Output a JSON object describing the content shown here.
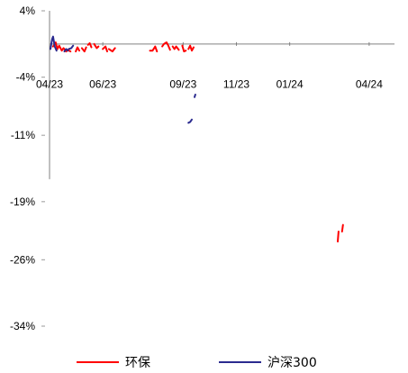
{
  "chart_data": {
    "type": "line",
    "y_axis": {
      "range": [
        -34,
        4
      ],
      "ticks": [
        4,
        -4,
        -11,
        -19,
        -26,
        -34
      ],
      "tick_labels": [
        "4%",
        "-4%",
        "-11%",
        "-19%",
        "-26%",
        "-34%"
      ]
    },
    "x_axis": {
      "crosses_y_at": 0,
      "range": [
        "2023-04-01",
        "2024-04-30"
      ],
      "ticks": [
        "2023-04-01",
        "2023-06-01",
        "2023-09-01",
        "2023-11-01",
        "2024-01-01",
        "2024-04-01"
      ],
      "tick_labels": [
        "04/23",
        "06/23",
        "09/23",
        "11/23",
        "01/24",
        "04/24"
      ]
    },
    "grid": false,
    "legend": {
      "placement": "bottom"
    },
    "series": [
      {
        "name": "环保",
        "color": "#ff0000",
        "segments": [
          [
            [
              "2023-04-05",
              -0.3
            ],
            [
              "2023-04-08",
              0.2
            ],
            [
              "2023-04-10",
              -0.6
            ],
            [
              "2023-04-12",
              -0.2
            ],
            [
              "2023-04-15",
              -0.8
            ],
            [
              "2023-04-17",
              -0.5
            ],
            [
              "2023-04-20",
              -0.9
            ],
            [
              "2023-04-22",
              -0.7
            ],
            [
              "2023-04-25",
              -0.9
            ]
          ],
          [
            [
              "2023-05-01",
              -0.9
            ],
            [
              "2023-05-03",
              -0.4
            ],
            [
              "2023-05-05",
              -0.8
            ]
          ],
          [
            [
              "2023-05-08",
              -0.5
            ],
            [
              "2023-05-11",
              -0.9
            ],
            [
              "2023-05-13",
              -0.4
            ]
          ],
          [
            [
              "2023-05-15",
              -0.1
            ],
            [
              "2023-05-17",
              0.1
            ],
            [
              "2023-05-19",
              -0.4
            ]
          ],
          [
            [
              "2023-05-22",
              0.0
            ],
            [
              "2023-05-25",
              -0.5
            ],
            [
              "2023-05-27",
              -0.3
            ]
          ],
          [
            [
              "2023-06-01",
              -0.6
            ],
            [
              "2023-06-04",
              -0.3
            ],
            [
              "2023-06-06",
              -0.9
            ]
          ],
          [
            [
              "2023-06-08",
              -0.6
            ],
            [
              "2023-06-12",
              -0.9
            ],
            [
              "2023-06-15",
              -0.5
            ]
          ],
          [
            [
              "2023-07-25",
              -0.8
            ],
            [
              "2023-07-28",
              -0.8
            ],
            [
              "2023-07-31",
              -0.3
            ],
            [
              "2023-08-02",
              -0.9
            ]
          ],
          [
            [
              "2023-08-08",
              -0.3
            ],
            [
              "2023-08-10",
              0.0
            ],
            [
              "2023-08-13",
              0.2
            ],
            [
              "2023-08-15",
              -0.2
            ],
            [
              "2023-08-17",
              -0.7
            ]
          ],
          [
            [
              "2023-08-20",
              -0.3
            ],
            [
              "2023-08-22",
              -0.6
            ],
            [
              "2023-08-24",
              -0.3
            ],
            [
              "2023-08-27",
              -0.7
            ]
          ],
          [
            [
              "2023-08-31",
              -0.2
            ],
            [
              "2023-09-02",
              -0.9
            ],
            [
              "2023-09-04",
              -0.8
            ]
          ],
          [
            [
              "2023-09-07",
              -0.6
            ],
            [
              "2023-09-09",
              -0.2
            ],
            [
              "2023-09-11",
              -0.8
            ],
            [
              "2023-09-13",
              -0.4
            ]
          ],
          [
            [
              "2024-02-25",
              -23.8
            ],
            [
              "2024-02-26",
              -22.6
            ]
          ],
          [
            [
              "2024-03-01",
              -22.6
            ],
            [
              "2024-03-02",
              -21.8
            ]
          ]
        ]
      },
      {
        "name": "沪深300",
        "color": "#2b2b8f",
        "segments": [
          [
            [
              "2023-04-02",
              -0.6
            ],
            [
              "2023-04-04",
              0.6
            ],
            [
              "2023-04-05",
              0.9
            ],
            [
              "2023-04-07",
              -0.3
            ],
            [
              "2023-04-09",
              -0.8
            ]
          ],
          [
            [
              "2023-04-18",
              -0.9
            ],
            [
              "2023-04-20",
              -0.6
            ],
            [
              "2023-04-22",
              -0.8
            ]
          ],
          [
            [
              "2023-04-23",
              -0.6
            ],
            [
              "2023-04-26",
              -0.5
            ],
            [
              "2023-04-28",
              -0.2
            ]
          ],
          [
            [
              "2023-09-07",
              -9.5
            ],
            [
              "2023-09-09",
              -9.4
            ],
            [
              "2023-09-11",
              -9.1
            ]
          ],
          [
            [
              "2023-09-14",
              -6.4
            ],
            [
              "2023-09-15",
              -6.1
            ]
          ]
        ]
      }
    ]
  }
}
